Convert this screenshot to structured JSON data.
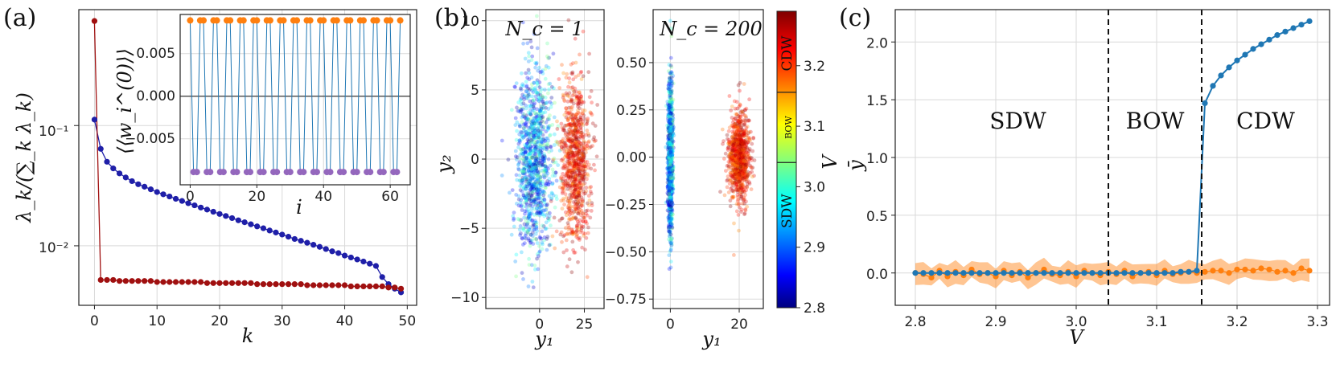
{
  "panel_labels": [
    "(a)",
    "(b)",
    "(c)"
  ],
  "chart_data": [
    {
      "id": "a",
      "type": "line",
      "yscale": "log",
      "xlabel": "k",
      "ylabel": "λ_k/(∑_k λ_k)",
      "xlim": [
        -2.5,
        51.5
      ],
      "xticks": [
        "0",
        "10",
        "20",
        "30",
        "40",
        "50"
      ],
      "yticks": [
        "10⁻²",
        "10⁻¹"
      ],
      "series": [
        {
          "name": "blue",
          "color": "#1f1fa8",
          "x": [
            0,
            1,
            2,
            3,
            4,
            5,
            6,
            7,
            8,
            9,
            10,
            11,
            12,
            13,
            14,
            15,
            16,
            17,
            18,
            19,
            20,
            21,
            22,
            23,
            24,
            25,
            26,
            27,
            28,
            29,
            30,
            31,
            32,
            33,
            34,
            35,
            36,
            37,
            38,
            39,
            40,
            41,
            42,
            43,
            44,
            45,
            46,
            47,
            48,
            49
          ],
          "y": [
            0.112,
            0.064,
            0.05,
            0.044,
            0.04,
            0.037,
            0.0345,
            0.0325,
            0.031,
            0.0295,
            0.028,
            0.0268,
            0.0257,
            0.0246,
            0.0236,
            0.0226,
            0.0217,
            0.0208,
            0.02,
            0.0192,
            0.0184,
            0.0177,
            0.017,
            0.0163,
            0.0157,
            0.0151,
            0.0145,
            0.014,
            0.0134,
            0.0129,
            0.0124,
            0.0119,
            0.0114,
            0.011,
            0.0106,
            0.0102,
            0.0098,
            0.0094,
            0.009,
            0.0087,
            0.0083,
            0.008,
            0.0077,
            0.0074,
            0.0071,
            0.0068,
            0.0055,
            0.0048,
            0.0044,
            0.0041
          ]
        },
        {
          "name": "red",
          "color": "#a01010",
          "x": [
            0,
            1,
            2,
            3,
            4,
            5,
            6,
            7,
            8,
            9,
            10,
            11,
            12,
            13,
            14,
            15,
            16,
            17,
            18,
            19,
            20,
            21,
            22,
            23,
            24,
            25,
            26,
            27,
            28,
            29,
            30,
            31,
            32,
            33,
            34,
            35,
            36,
            37,
            38,
            39,
            40,
            41,
            42,
            43,
            44,
            45,
            46,
            47,
            48,
            49
          ],
          "y": [
            0.74,
            0.0052,
            0.0052,
            0.0052,
            0.0051,
            0.0051,
            0.0051,
            0.0051,
            0.0051,
            0.0051,
            0.005,
            0.005,
            0.005,
            0.005,
            0.005,
            0.005,
            0.005,
            0.005,
            0.0049,
            0.0049,
            0.0049,
            0.0049,
            0.0049,
            0.0049,
            0.0049,
            0.0049,
            0.0048,
            0.0048,
            0.0048,
            0.0048,
            0.0048,
            0.0048,
            0.0048,
            0.0048,
            0.0047,
            0.0047,
            0.0047,
            0.0047,
            0.0047,
            0.0047,
            0.0047,
            0.0046,
            0.0046,
            0.0046,
            0.0046,
            0.0046,
            0.0046,
            0.0045,
            0.0045,
            0.0044
          ]
        }
      ],
      "inset": {
        "type": "line",
        "xlabel": "i",
        "ylabel": "⟨⟨w_i^(0)⟩⟩",
        "xticks": [
          "0",
          "20",
          "40",
          "60"
        ],
        "yticks": [
          "−0.005",
          "0.000",
          "0.005"
        ],
        "xlim": [
          -3,
          66
        ],
        "ylim": [
          -0.0104,
          0.0096
        ],
        "high_value": 0.0089,
        "low_value": -0.0089,
        "n_points": 64,
        "orange": "#ff7f0e",
        "purple": "#9467bd",
        "line": "#1f77b4"
      }
    },
    {
      "id": "b1",
      "type": "scatter",
      "title": "N_c = 1",
      "xlabel": "y₁",
      "ylabel": "y₂",
      "xlim": [
        -30,
        36
      ],
      "ylim": [
        -10.8,
        10.8
      ],
      "xticks": [
        "0",
        "25"
      ],
      "yticks": [
        "−10",
        "−5",
        "0",
        "5",
        "10"
      ],
      "clusters": [
        {
          "label": "SDW/BOW",
          "x_center": -3,
          "x_spread": 8,
          "y_spread": 3.2
        },
        {
          "label": "CDW",
          "x_center": 20,
          "x_spread": 7,
          "y_spread": 3.0
        }
      ]
    },
    {
      "id": "b2",
      "type": "scatter",
      "title": "N_c = 200",
      "xlabel": "y₁",
      "ylabel": "",
      "xlim": [
        -5,
        27
      ],
      "ylim": [
        -0.8,
        0.78
      ],
      "xticks": [
        "0",
        "20"
      ],
      "yticks": [
        "−0.75",
        "−0.50",
        "−0.25",
        "0.00",
        "0.25",
        "0.50"
      ],
      "clusters": [
        {
          "label": "SDW/BOW",
          "x_center": 0,
          "x_spread": 0.6,
          "y_spread": 0.2
        },
        {
          "label": "CDW",
          "x_center": 20,
          "x_spread": 2.5,
          "y_spread": 0.12
        }
      ]
    },
    {
      "id": "colorbar",
      "type": "colorbar",
      "label": "V",
      "range": [
        2.8,
        3.29
      ],
      "ticks": [
        "2.8",
        "2.9",
        "3.0",
        "3.1",
        "3.2"
      ],
      "regions": [
        "SDW",
        "BOW",
        "CDW"
      ],
      "boundaries": [
        3.04,
        3.156
      ]
    },
    {
      "id": "c",
      "type": "line",
      "xlabel": "V",
      "ylabel": "ȳ",
      "xlim": [
        2.775,
        3.315
      ],
      "ylim": [
        -0.28,
        2.28
      ],
      "xticks": [
        "2.8",
        "2.9",
        "3.0",
        "3.1",
        "3.2",
        "3.3"
      ],
      "yticks": [
        "0.0",
        "0.5",
        "1.0",
        "1.5",
        "2.0"
      ],
      "phases": [
        "SDW",
        "BOW",
        "CDW"
      ],
      "transitions": [
        3.04,
        3.156
      ],
      "series": [
        {
          "name": "blue",
          "color": "#1f77b4",
          "x": [
            2.8,
            2.81,
            2.82,
            2.83,
            2.84,
            2.85,
            2.86,
            2.87,
            2.88,
            2.89,
            2.9,
            2.91,
            2.92,
            2.93,
            2.94,
            2.95,
            2.96,
            2.97,
            2.98,
            2.99,
            3.0,
            3.01,
            3.02,
            3.03,
            3.04,
            3.05,
            3.06,
            3.07,
            3.08,
            3.09,
            3.1,
            3.11,
            3.12,
            3.13,
            3.14,
            3.15,
            3.16,
            3.17,
            3.18,
            3.19,
            3.2,
            3.21,
            3.22,
            3.23,
            3.24,
            3.25,
            3.26,
            3.27,
            3.28,
            3.29
          ],
          "y": [
            0.0,
            0.0,
            0.0,
            0.0,
            0.0,
            0.0,
            0.0,
            0.0,
            0.0,
            0.0,
            0.0,
            0.0,
            0.0,
            0.0,
            0.0,
            0.0,
            0.0,
            0.0,
            0.0,
            0.0,
            0.0,
            0.0,
            0.0,
            0.0,
            0.0,
            0.0,
            0.0,
            0.0,
            0.0,
            0.0,
            0.0,
            0.0,
            0.0,
            0.01,
            0.01,
            0.02,
            1.47,
            1.62,
            1.71,
            1.78,
            1.84,
            1.89,
            1.94,
            1.98,
            2.02,
            2.06,
            2.09,
            2.12,
            2.15,
            2.18
          ]
        },
        {
          "name": "orange",
          "color": "#ff7f0e",
          "x": [
            2.8,
            2.81,
            2.82,
            2.83,
            2.84,
            2.85,
            2.86,
            2.87,
            2.88,
            2.89,
            2.9,
            2.91,
            2.92,
            2.93,
            2.94,
            2.95,
            2.96,
            2.97,
            2.98,
            2.99,
            3.0,
            3.01,
            3.02,
            3.03,
            3.04,
            3.05,
            3.06,
            3.07,
            3.08,
            3.09,
            3.1,
            3.11,
            3.12,
            3.13,
            3.14,
            3.15,
            3.16,
            3.17,
            3.18,
            3.19,
            3.2,
            3.21,
            3.22,
            3.23,
            3.24,
            3.25,
            3.26,
            3.27,
            3.28,
            3.29
          ],
          "y": [
            0.0,
            -0.01,
            -0.04,
            0.02,
            -0.03,
            0.01,
            -0.02,
            0.03,
            -0.01,
            0.0,
            -0.03,
            0.02,
            -0.02,
            0.01,
            -0.04,
            0.0,
            0.03,
            -0.01,
            -0.02,
            0.01,
            -0.03,
            0.02,
            0.0,
            -0.02,
            0.01,
            -0.01,
            0.02,
            -0.03,
            0.0,
            0.01,
            -0.02,
            0.02,
            -0.01,
            0.0,
            0.01,
            0.0,
            0.01,
            0.02,
            0.02,
            0.0,
            0.03,
            0.03,
            0.02,
            0.04,
            0.03,
            0.01,
            0.02,
            0.0,
            0.04,
            0.02
          ],
          "band": 0.085
        }
      ]
    }
  ]
}
